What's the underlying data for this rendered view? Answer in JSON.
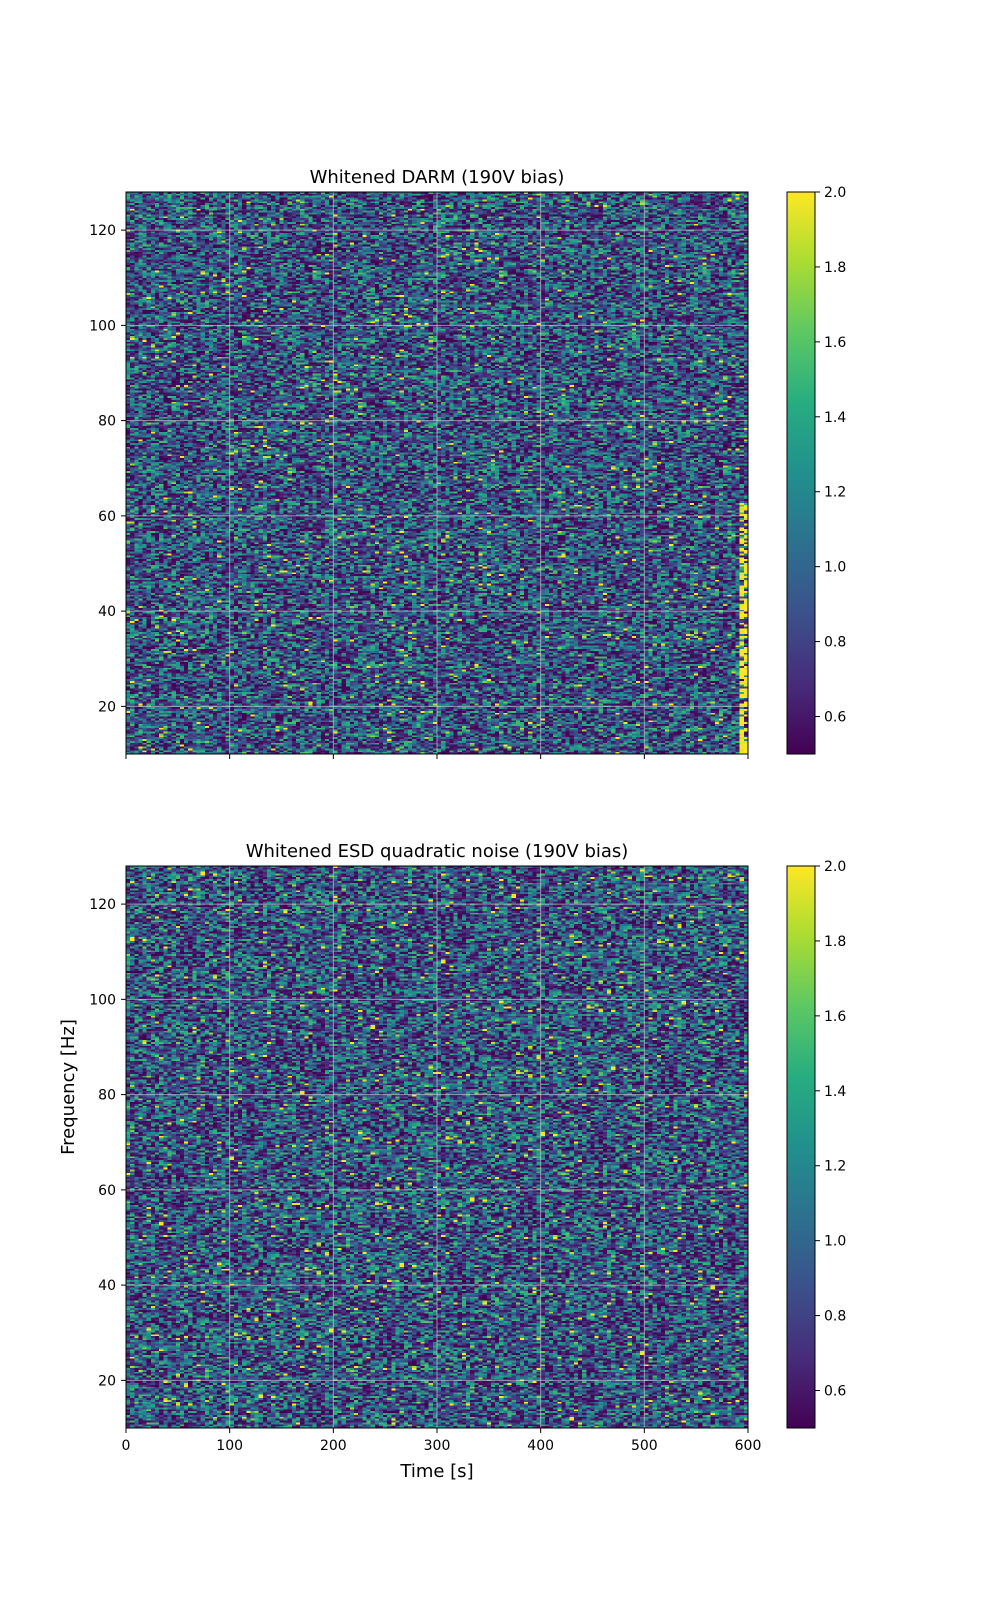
{
  "chart_data": [
    {
      "type": "heatmap",
      "title": "Whitened DARM (190V bias)",
      "xlabel": "",
      "ylabel": "",
      "xlim": [
        0,
        600
      ],
      "ylim": [
        10,
        128
      ],
      "xticks": [
        0,
        100,
        200,
        300,
        400,
        500,
        600
      ],
      "xtick_labels_shown": false,
      "yticks": [
        20,
        40,
        60,
        80,
        100,
        120
      ],
      "grid": true,
      "colormap": "viridis",
      "value_range": [
        0.5,
        2.0
      ],
      "colorbar_ticks": [
        0.6,
        0.8,
        1.0,
        1.2,
        1.4,
        1.6,
        1.8,
        2.0
      ],
      "description": "noise-like whitened spectrogram with values mostly between 0.5 and 2.0; brighter band near 600 s at low frequencies"
    },
    {
      "type": "heatmap",
      "title": "Whitened ESD quadratic noise (190V bias)",
      "xlabel": "Time [s]",
      "ylabel": "Frequency [Hz]",
      "xlim": [
        0,
        600
      ],
      "ylim": [
        10,
        128
      ],
      "xticks": [
        0,
        100,
        200,
        300,
        400,
        500,
        600
      ],
      "xtick_labels_shown": true,
      "yticks": [
        20,
        40,
        60,
        80,
        100,
        120
      ],
      "grid": true,
      "colormap": "viridis",
      "value_range": [
        0.5,
        2.0
      ],
      "colorbar_ticks": [
        0.6,
        0.8,
        1.0,
        1.2,
        1.4,
        1.6,
        1.8,
        2.0
      ],
      "description": "noise-like whitened spectrogram with values mostly between 0.5 and 2.0"
    }
  ]
}
